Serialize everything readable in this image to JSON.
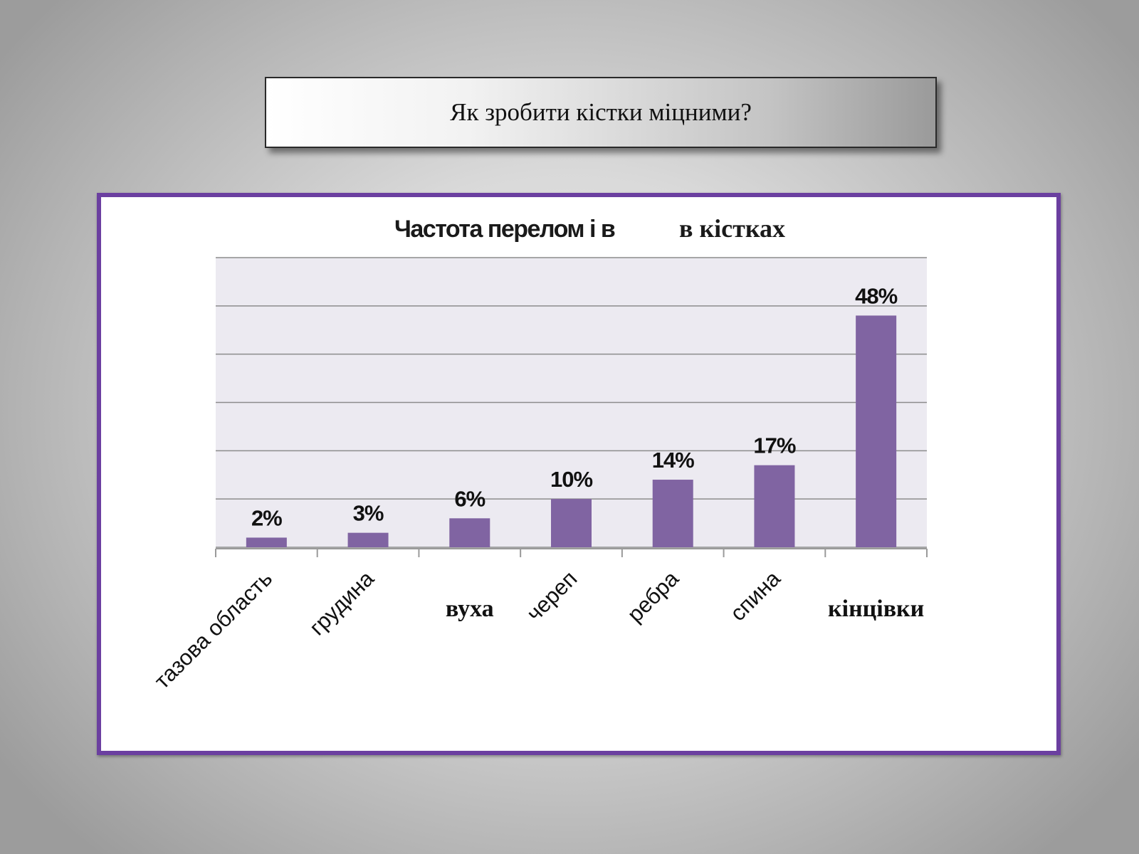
{
  "slide": {
    "title": "Як зробити кістки міцними?"
  },
  "chart_data": {
    "type": "bar",
    "title": "Частота перелом і в  в кістках",
    "title_parts": [
      "Частота перелом і в",
      "в кістках"
    ],
    "categories": [
      "тазова  область",
      "грудина",
      "вуха",
      "череп",
      "ребра",
      "спина",
      "кінцівки"
    ],
    "values": [
      2,
      3,
      6,
      10,
      14,
      17,
      48
    ],
    "data_labels": [
      "2%",
      "3%",
      "6%",
      "10%",
      "14%",
      "17%",
      "48%"
    ],
    "rotated_categories": [
      true,
      true,
      false,
      true,
      true,
      true,
      false
    ],
    "xlabel": "",
    "ylabel": "",
    "ylim": [
      0,
      60
    ],
    "grid": true,
    "legend": "none",
    "colors": {
      "bar": "#8064a2",
      "plot_background": "#eceaf1",
      "gridline": "#8c8c8c",
      "frame": "#6b3fa0"
    }
  }
}
